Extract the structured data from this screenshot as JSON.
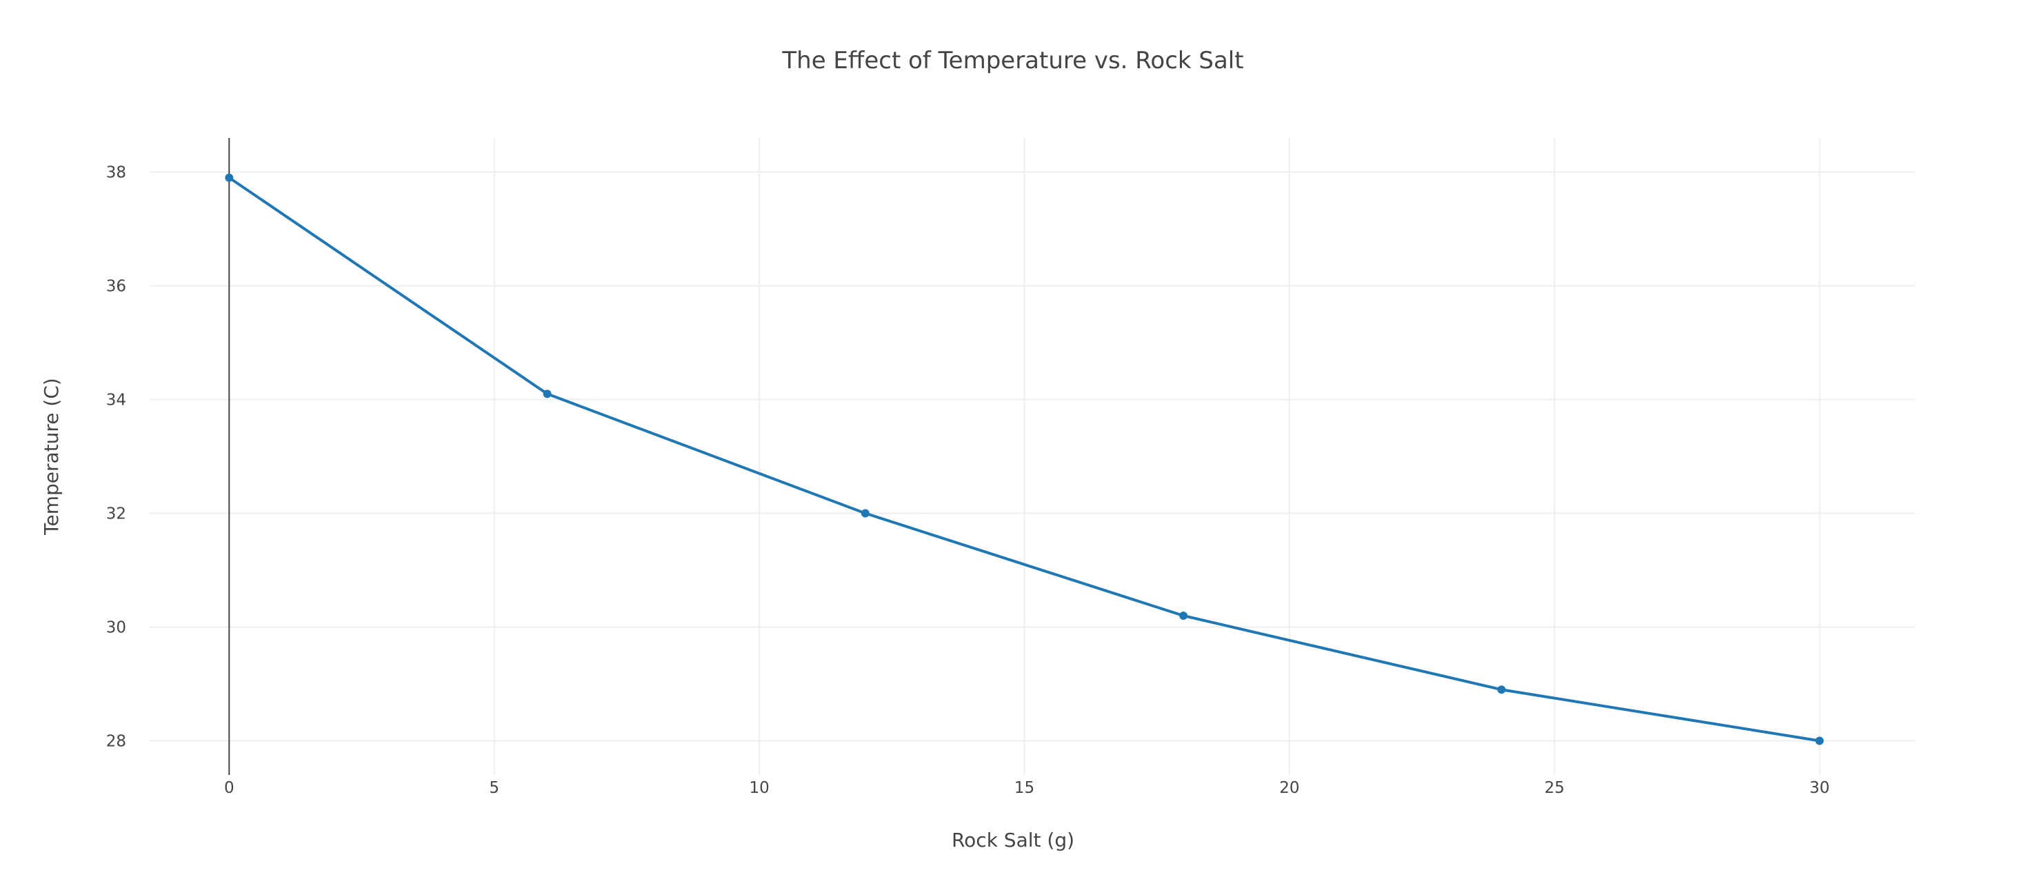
{
  "chart_data": {
    "type": "line",
    "title": "The Effect of Temperature vs. Rock Salt",
    "xlabel": "Rock Salt (g)",
    "ylabel": "Temperature (C)",
    "xlim": [
      -1.5,
      31.8
    ],
    "ylim": [
      27.4,
      38.6
    ],
    "x_ticks": [
      0,
      5,
      10,
      15,
      20,
      25,
      30
    ],
    "y_ticks": [
      28,
      30,
      32,
      34,
      36,
      38
    ],
    "grid": true,
    "legend": "none",
    "series": [
      {
        "x": [
          0,
          6,
          12,
          18,
          24,
          30
        ],
        "y": [
          37.9,
          34.1,
          32.0,
          30.2,
          28.9,
          28.0
        ],
        "color": "#1f77b4",
        "mode": "lines+markers"
      }
    ]
  }
}
